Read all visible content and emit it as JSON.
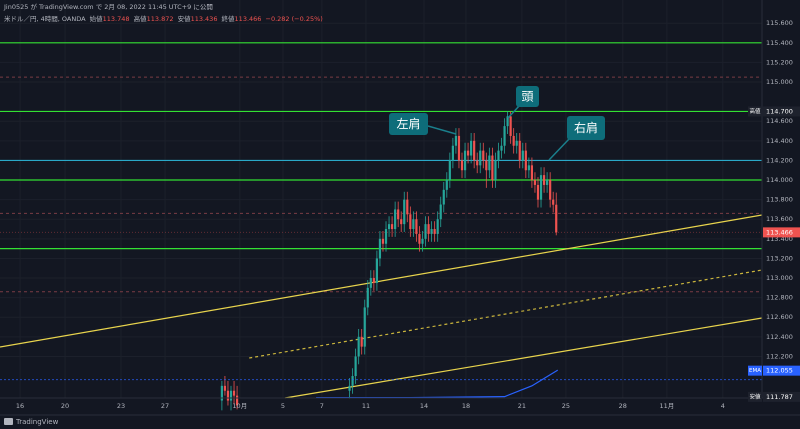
{
  "header": {
    "published": "Jin0525 が TradingView.com で 2月 08, 2022 11:45 UTC+9 に公開",
    "symbol": "米ドル／円, 4時間, OANDA",
    "ohlc": [
      {
        "name": "始値",
        "value": "113.748"
      },
      {
        "name": "高値",
        "value": "113.872"
      },
      {
        "name": "安値",
        "value": "113.436"
      },
      {
        "name": "終値",
        "value": "113.466"
      }
    ],
    "change": "−0.282 (−0.25%)"
  },
  "chart_data": {
    "type": "candlestick",
    "up_color": "#26a69a",
    "down_color": "#ef5350",
    "x": [
      73,
      74,
      75,
      76,
      77,
      78,
      115,
      116,
      117,
      118,
      119,
      120,
      121,
      122,
      123,
      124,
      125,
      126,
      127,
      128,
      129,
      130,
      131,
      132,
      133,
      134,
      135,
      136,
      137,
      138,
      139,
      140,
      141,
      142,
      143,
      144,
      145,
      146,
      147,
      148,
      149,
      150,
      151,
      152,
      153,
      154,
      155,
      156,
      157,
      158,
      159,
      160,
      161,
      162,
      163,
      164,
      165,
      166,
      167,
      168,
      169,
      170,
      171,
      172,
      173,
      174,
      175,
      176,
      177,
      178,
      179,
      180,
      181,
      182,
      183
    ],
    "open": [
      111.75,
      111.9,
      111.85,
      111.75,
      111.85,
      111.8,
      111.85,
      111.9,
      112.0,
      112.2,
      112.4,
      112.3,
      112.7,
      112.9,
      113.0,
      112.95,
      113.2,
      113.4,
      113.35,
      113.5,
      113.55,
      113.5,
      113.7,
      113.6,
      113.55,
      113.8,
      113.65,
      113.5,
      113.6,
      113.45,
      113.35,
      113.4,
      113.55,
      113.45,
      113.5,
      113.45,
      113.6,
      113.75,
      113.9,
      114.0,
      114.2,
      114.35,
      114.45,
      114.2,
      114.1,
      114.3,
      114.25,
      114.4,
      114.2,
      114.15,
      114.3,
      114.2,
      114.1,
      114.25,
      114.0,
      114.2,
      114.3,
      114.35,
      114.55,
      114.65,
      114.45,
      114.35,
      114.4,
      114.2,
      114.3,
      114.1,
      114.15,
      114.0,
      113.95,
      113.8,
      114.05,
      113.95,
      114.0,
      113.8,
      113.748
    ],
    "high": [
      111.95,
      112.0,
      111.95,
      111.9,
      111.95,
      111.9,
      111.98,
      112.08,
      112.28,
      112.48,
      112.48,
      112.78,
      112.98,
      113.08,
      113.08,
      113.28,
      113.48,
      113.48,
      113.58,
      113.63,
      113.63,
      113.78,
      113.78,
      113.68,
      113.88,
      113.88,
      113.73,
      113.68,
      113.68,
      113.53,
      113.48,
      113.63,
      113.63,
      113.58,
      113.58,
      113.68,
      113.83,
      113.98,
      114.08,
      114.28,
      114.43,
      114.53,
      114.53,
      114.28,
      114.38,
      114.38,
      114.48,
      114.48,
      114.28,
      114.38,
      114.38,
      114.28,
      114.33,
      114.33,
      114.28,
      114.38,
      114.43,
      114.63,
      114.7,
      114.7,
      114.53,
      114.48,
      114.48,
      114.38,
      114.38,
      114.23,
      114.23,
      114.08,
      114.03,
      114.13,
      114.13,
      114.08,
      114.08,
      113.88,
      113.872
    ],
    "low": [
      111.65,
      111.8,
      111.7,
      111.65,
      111.72,
      111.66,
      111.77,
      111.82,
      111.92,
      112.12,
      112.22,
      112.22,
      112.62,
      112.82,
      112.87,
      112.87,
      113.12,
      113.27,
      113.27,
      113.42,
      113.42,
      113.42,
      113.52,
      113.47,
      113.47,
      113.57,
      113.42,
      113.42,
      113.37,
      113.27,
      113.27,
      113.32,
      113.37,
      113.37,
      113.37,
      113.37,
      113.52,
      113.67,
      113.82,
      113.92,
      114.12,
      114.27,
      114.12,
      114.02,
      114.02,
      114.17,
      114.17,
      114.12,
      114.07,
      114.07,
      114.12,
      113.92,
      114.02,
      113.92,
      113.92,
      114.12,
      114.22,
      114.27,
      114.47,
      114.37,
      114.27,
      114.27,
      114.12,
      114.12,
      114.02,
      114.02,
      113.92,
      113.87,
      113.72,
      113.72,
      113.87,
      113.87,
      113.72,
      113.67,
      113.436
    ],
    "close": [
      111.9,
      111.85,
      111.75,
      111.85,
      111.8,
      111.7,
      111.9,
      112.0,
      112.2,
      112.4,
      112.3,
      112.7,
      112.9,
      113.0,
      112.95,
      113.2,
      113.4,
      113.35,
      113.5,
      113.55,
      113.5,
      113.7,
      113.6,
      113.55,
      113.8,
      113.65,
      113.5,
      113.6,
      113.45,
      113.35,
      113.4,
      113.55,
      113.45,
      113.5,
      113.45,
      113.6,
      113.75,
      113.9,
      114.0,
      114.2,
      114.35,
      114.45,
      114.2,
      114.1,
      114.3,
      114.25,
      114.4,
      114.2,
      114.15,
      114.3,
      114.2,
      114.1,
      114.25,
      114.0,
      114.2,
      114.3,
      114.35,
      114.55,
      114.65,
      114.45,
      114.35,
      114.4,
      114.2,
      114.3,
      114.1,
      114.15,
      114.0,
      113.95,
      113.8,
      114.05,
      113.95,
      114.0,
      113.8,
      113.748,
      113.466
    ],
    "xlim": [
      0,
      250.7
    ],
    "ylim": [
      111.776,
      115.837
    ],
    "grid": true,
    "yticks": [
      {
        "value": 115.6,
        "label": "115.600"
      },
      {
        "value": 115.4,
        "label": "115.400"
      },
      {
        "value": 115.2,
        "label": "115.200"
      },
      {
        "value": 115.0,
        "label": "115.000"
      },
      {
        "value": 114.6,
        "label": "114.600"
      },
      {
        "value": 114.4,
        "label": "114.400"
      },
      {
        "value": 114.2,
        "label": "114.200"
      },
      {
        "value": 114.0,
        "label": "114.000"
      },
      {
        "value": 113.8,
        "label": "113.800"
      },
      {
        "value": 113.6,
        "label": "113.600"
      },
      {
        "value": 113.4,
        "label": "113.400"
      },
      {
        "value": 113.2,
        "label": "113.200"
      },
      {
        "value": 113.0,
        "label": "113.000"
      },
      {
        "value": 112.8,
        "label": "112.800"
      },
      {
        "value": 112.6,
        "label": "112.600"
      },
      {
        "value": 112.4,
        "label": "112.400"
      },
      {
        "value": 112.2,
        "label": "112.200"
      }
    ],
    "xticks": [
      {
        "value": 6.6,
        "label": "16"
      },
      {
        "value": 21.4,
        "label": "20"
      },
      {
        "value": 39.8,
        "label": "23"
      },
      {
        "value": 54.3,
        "label": "27"
      },
      {
        "value": 78.9,
        "label": "10月"
      },
      {
        "value": 93.1,
        "label": "5"
      },
      {
        "value": 105.9,
        "label": "7"
      },
      {
        "value": 120.4,
        "label": "11"
      },
      {
        "value": 139.5,
        "label": "14"
      },
      {
        "value": 153.3,
        "label": "18"
      },
      {
        "value": 171.7,
        "label": "21"
      },
      {
        "value": 186.2,
        "label": "25"
      },
      {
        "value": 204.9,
        "label": "28"
      },
      {
        "value": 219.4,
        "label": "11月"
      },
      {
        "value": 237.8,
        "label": "4"
      }
    ],
    "levels": [
      {
        "value": 115.4,
        "color": "#33e033",
        "style": "solid"
      },
      {
        "value": 114.7,
        "color": "#33e033",
        "style": "solid"
      },
      {
        "value": 114.0,
        "color": "#33e033",
        "style": "solid"
      },
      {
        "value": 113.3,
        "color": "#33e033",
        "style": "solid"
      },
      {
        "value": 114.2,
        "color": "#2aa8c8",
        "style": "solid"
      },
      {
        "value": 115.05,
        "color": "#7a3c44",
        "style": "dashed"
      },
      {
        "value": 113.66,
        "color": "#7a3c44",
        "style": "dashed"
      },
      {
        "value": 112.86,
        "color": "#7a3c44",
        "style": "dashed"
      }
    ],
    "trendlines": [
      {
        "x": [
          0,
          250.7
        ],
        "y": [
          112.296,
          113.643
        ],
        "color": "#e8d44d",
        "style": "solid"
      },
      {
        "x": [
          82,
          250.7
        ],
        "y": [
          112.184,
          113.082
        ],
        "color": "#c9b43c",
        "style": "dashed"
      },
      {
        "x": [
          93.75,
          250.7
        ],
        "y": [
          111.776,
          112.592
        ],
        "color": "#e8d44d",
        "style": "solid"
      }
    ],
    "ema": {
      "x": [
        104,
        135,
        166,
        175,
        183.5
      ],
      "y": [
        111.78,
        111.78,
        111.79,
        111.9,
        112.06
      ],
      "color": "#2962ff"
    },
    "price_labels": [
      {
        "tag": "高値",
        "value": 114.7,
        "label": "114.700",
        "color": "#1e222d"
      },
      {
        "value": 113.466,
        "label": "113.466",
        "color": "#ef5350"
      },
      {
        "tag": "EMA",
        "value": 112.055,
        "label": "112.055",
        "color": "#2962ff"
      },
      {
        "tag": "安値",
        "value": 111.787,
        "label": "111.787",
        "color": "#1e222d"
      }
    ],
    "annotations": [
      {
        "text": "左肩"
      },
      {
        "text": "頭"
      },
      {
        "text": "右肩"
      }
    ]
  },
  "footer": {
    "logo": "TradingView"
  }
}
